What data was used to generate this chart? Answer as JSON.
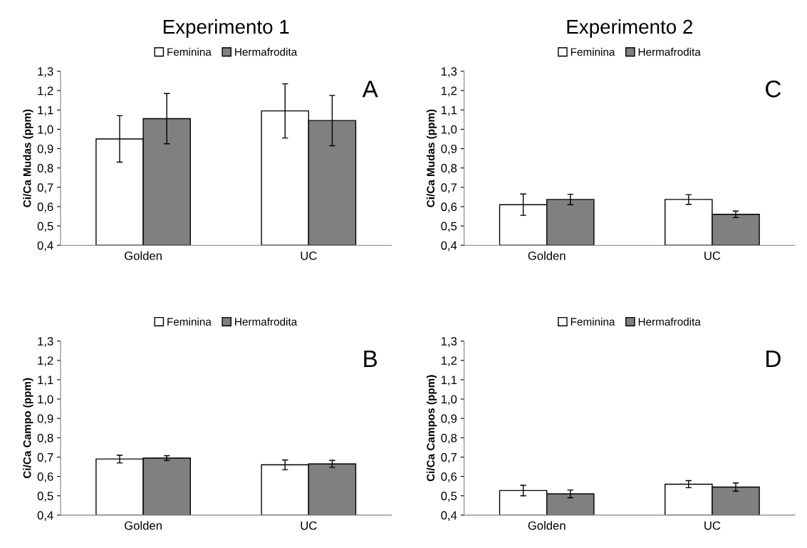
{
  "chart_data": [
    {
      "type": "bar",
      "title": "Experimento 1",
      "ylabel": "Ci/Ca Mudas (ppm)",
      "annotations": [
        "A"
      ],
      "categories": [
        "Golden",
        "UC"
      ],
      "legend": "top",
      "grid": false,
      "ylim": [
        0.4,
        1.3
      ],
      "yticks": [
        {
          "value": 0.4,
          "label": "0,4"
        },
        {
          "value": 0.5,
          "label": "0,5"
        },
        {
          "value": 0.6,
          "label": "0,6"
        },
        {
          "value": 0.7,
          "label": "0,7"
        },
        {
          "value": 0.8,
          "label": "0,8"
        },
        {
          "value": 0.9,
          "label": "0,9"
        },
        {
          "value": 1.0,
          "label": "1,0"
        },
        {
          "value": 1.1,
          "label": "1,1"
        },
        {
          "value": 1.2,
          "label": "1,2"
        },
        {
          "value": 1.3,
          "label": "1,3"
        }
      ],
      "series": [
        {
          "name": "Feminina",
          "color": "#ffffff",
          "values": [
            0.95,
            1.095
          ],
          "errors": [
            0.12,
            0.14
          ]
        },
        {
          "name": "Hermafrodita",
          "color": "#808080",
          "values": [
            1.055,
            1.045
          ],
          "errors": [
            0.13,
            0.13
          ]
        }
      ]
    },
    {
      "type": "bar",
      "title": "Experimento 2",
      "ylabel": "Ci/Ca Mudas (ppm)",
      "annotations": [
        "C"
      ],
      "categories": [
        "Golden",
        "UC"
      ],
      "legend": "top",
      "grid": false,
      "ylim": [
        0.4,
        1.3
      ],
      "yticks": [
        {
          "value": 0.4,
          "label": "0,4"
        },
        {
          "value": 0.5,
          "label": "0,5"
        },
        {
          "value": 0.6,
          "label": "0,6"
        },
        {
          "value": 0.7,
          "label": "0,7"
        },
        {
          "value": 0.8,
          "label": "0,8"
        },
        {
          "value": 0.9,
          "label": "0,9"
        },
        {
          "value": 1.0,
          "label": "1,0"
        },
        {
          "value": 1.1,
          "label": "1,1"
        },
        {
          "value": 1.2,
          "label": "1,2"
        },
        {
          "value": 1.3,
          "label": "1,3"
        }
      ],
      "series": [
        {
          "name": "Feminina",
          "color": "#ffffff",
          "values": [
            0.61,
            0.637
          ],
          "errors": [
            0.055,
            0.025
          ]
        },
        {
          "name": "Hermafrodita",
          "color": "#808080",
          "values": [
            0.637,
            0.56
          ],
          "errors": [
            0.027,
            0.017
          ]
        }
      ]
    },
    {
      "type": "bar",
      "ylabel": "Ci/Ca Campo (ppm)",
      "annotations": [
        "B"
      ],
      "categories": [
        "Golden",
        "UC"
      ],
      "legend": "top",
      "grid": false,
      "ylim": [
        0.4,
        1.3
      ],
      "yticks": [
        {
          "value": 0.4,
          "label": "0,4"
        },
        {
          "value": 0.5,
          "label": "0,5"
        },
        {
          "value": 0.6,
          "label": "0,6"
        },
        {
          "value": 0.7,
          "label": "0,7"
        },
        {
          "value": 0.8,
          "label": "0,8"
        },
        {
          "value": 0.9,
          "label": "0,9"
        },
        {
          "value": 1.0,
          "label": "1,0"
        },
        {
          "value": 1.1,
          "label": "1,1"
        },
        {
          "value": 1.2,
          "label": "1,2"
        },
        {
          "value": 1.3,
          "label": "1,3"
        }
      ],
      "series": [
        {
          "name": "Feminina",
          "color": "#ffffff",
          "values": [
            0.69,
            0.66
          ],
          "errors": [
            0.02,
            0.025
          ]
        },
        {
          "name": "Hermafrodita",
          "color": "#808080",
          "values": [
            0.695,
            0.665
          ],
          "errors": [
            0.012,
            0.018
          ]
        }
      ]
    },
    {
      "type": "bar",
      "ylabel": "Ci/Ca Campos (ppm)",
      "annotations": [
        "D"
      ],
      "categories": [
        "Golden",
        "UC"
      ],
      "legend": "top",
      "grid": false,
      "ylim": [
        0.4,
        1.3
      ],
      "yticks": [
        {
          "value": 0.4,
          "label": "0,4"
        },
        {
          "value": 0.5,
          "label": "0,5"
        },
        {
          "value": 0.6,
          "label": "0,6"
        },
        {
          "value": 0.7,
          "label": "0,7"
        },
        {
          "value": 0.8,
          "label": "0,8"
        },
        {
          "value": 0.9,
          "label": "0,9"
        },
        {
          "value": 1.0,
          "label": "1,0"
        },
        {
          "value": 1.1,
          "label": "1,1"
        },
        {
          "value": 1.2,
          "label": "1,2"
        },
        {
          "value": 1.3,
          "label": "1,3"
        }
      ],
      "series": [
        {
          "name": "Feminina",
          "color": "#ffffff",
          "values": [
            0.527,
            0.56
          ],
          "errors": [
            0.027,
            0.018
          ]
        },
        {
          "name": "Hermafrodita",
          "color": "#808080",
          "values": [
            0.51,
            0.545
          ],
          "errors": [
            0.02,
            0.021
          ]
        }
      ]
    }
  ]
}
